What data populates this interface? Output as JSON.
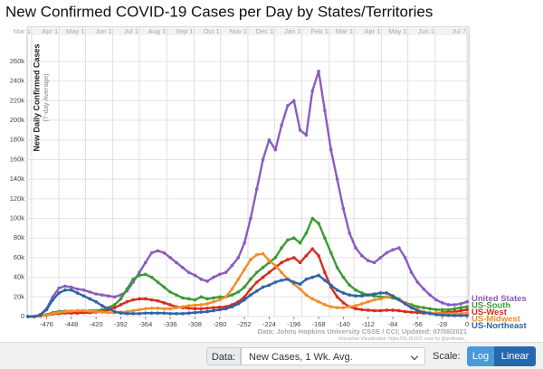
{
  "chart_data": {
    "type": "line",
    "title": "New Confirmed COVID-19 Cases per Day by States/Territories",
    "y_label": "New Daily Confirmed Cases",
    "y_sublabel": "(7-day Average)",
    "source": "Data: Johns Hopkins University CSSE / CCI; Updated: 07/08/2021",
    "credit": "Interactive Visualization: https://91-DIVOC.com/ by @profwade_",
    "x": [
      -497,
      -490,
      -483,
      -476,
      -469,
      -462,
      -455,
      -448,
      -441,
      -434,
      -427,
      -420,
      -413,
      -406,
      -399,
      -392,
      -385,
      -378,
      -371,
      -364,
      -357,
      -350,
      -343,
      -336,
      -329,
      -322,
      -315,
      -308,
      -301,
      -294,
      -287,
      -280,
      -273,
      -266,
      -259,
      -252,
      -245,
      -238,
      -231,
      -224,
      -217,
      -210,
      -203,
      -196,
      -189,
      -182,
      -175,
      -168,
      -161,
      -154,
      -147,
      -140,
      -133,
      -126,
      -119,
      -112,
      -105,
      -98,
      -91,
      -84,
      -77,
      -70,
      -63,
      -56,
      -49,
      -42,
      -35,
      -28,
      -21,
      -14,
      -7,
      0
    ],
    "series": [
      {
        "name": "United States",
        "color": "#8a5cc0",
        "values": [
          0,
          0,
          2000,
          8000,
          20000,
          29000,
          31000,
          30000,
          28000,
          27000,
          25000,
          23000,
          22000,
          21000,
          20000,
          22000,
          26000,
          35000,
          45000,
          55000,
          65000,
          67000,
          65000,
          60000,
          55000,
          50000,
          45000,
          42000,
          38000,
          36000,
          40000,
          43000,
          45000,
          52000,
          60000,
          75000,
          100000,
          130000,
          160000,
          180000,
          170000,
          195000,
          215000,
          220000,
          190000,
          185000,
          230000,
          250000,
          210000,
          170000,
          140000,
          110000,
          85000,
          70000,
          62000,
          57000,
          55000,
          60000,
          65000,
          68000,
          70000,
          60000,
          45000,
          35000,
          28000,
          22000,
          17000,
          14000,
          12000,
          12000,
          13000,
          15000
        ]
      },
      {
        "name": "US-South",
        "color": "#3a9b35",
        "values": [
          0,
          0,
          500,
          2000,
          4000,
          5000,
          5500,
          5500,
          5500,
          5500,
          6000,
          6000,
          7000,
          9000,
          12000,
          18000,
          28000,
          38000,
          42000,
          43000,
          40000,
          35000,
          30000,
          25000,
          22000,
          19000,
          18000,
          17000,
          20000,
          18000,
          19000,
          20000,
          20000,
          22000,
          25000,
          30000,
          38000,
          45000,
          50000,
          55000,
          60000,
          70000,
          78000,
          80000,
          75000,
          85000,
          100000,
          95000,
          80000,
          65000,
          50000,
          40000,
          32000,
          27000,
          24000,
          22000,
          21000,
          20000,
          20000,
          19000,
          17000,
          14000,
          12000,
          10000,
          9000,
          8000,
          7000,
          7000,
          7000,
          8000,
          9000,
          10000
        ]
      },
      {
        "name": "US-West",
        "color": "#d62d20",
        "values": [
          0,
          0,
          500,
          1500,
          2500,
          3000,
          3500,
          3500,
          3500,
          4000,
          4000,
          4500,
          5000,
          7000,
          9000,
          12000,
          15000,
          17000,
          18000,
          18000,
          17000,
          16000,
          14000,
          12000,
          10000,
          9000,
          8500,
          8000,
          8000,
          8500,
          9000,
          9500,
          10000,
          12000,
          15000,
          20000,
          28000,
          35000,
          40000,
          45000,
          50000,
          55000,
          58000,
          60000,
          55000,
          62000,
          69000,
          62000,
          45000,
          30000,
          20000,
          14000,
          10000,
          8000,
          7000,
          6500,
          6000,
          6000,
          6500,
          6500,
          6000,
          5000,
          4500,
          4000,
          3500,
          3500,
          3500,
          4000,
          4500,
          5000,
          6000,
          7000
        ]
      },
      {
        "name": "US-Midwest",
        "color": "#f28e2b",
        "values": [
          0,
          0,
          200,
          1500,
          3000,
          4000,
          5000,
          5500,
          6000,
          6000,
          5500,
          5000,
          4500,
          4000,
          4000,
          4500,
          5000,
          6000,
          7000,
          8000,
          8500,
          8500,
          8000,
          8000,
          9000,
          10000,
          11000,
          11500,
          12000,
          13000,
          15000,
          17000,
          20000,
          28000,
          38000,
          48000,
          58000,
          63000,
          64000,
          57000,
          52000,
          45000,
          38000,
          33000,
          28000,
          22000,
          18000,
          15000,
          12000,
          10000,
          9000,
          9000,
          10000,
          11000,
          13000,
          15000,
          17000,
          18000,
          20000,
          21000,
          18000,
          14000,
          10000,
          7000,
          5000,
          4000,
          3500,
          3000,
          3000,
          3000,
          3000,
          3500
        ]
      },
      {
        "name": "US-Northeast",
        "color": "#2f63a6",
        "values": [
          0,
          0,
          1500,
          7000,
          17000,
          24000,
          27000,
          27000,
          24000,
          21000,
          18000,
          15000,
          11000,
          8000,
          5000,
          3500,
          3000,
          3000,
          3000,
          3500,
          3500,
          3500,
          3500,
          3000,
          3000,
          3000,
          3500,
          4000,
          4500,
          5000,
          6000,
          7000,
          8000,
          10000,
          13000,
          17000,
          22000,
          26000,
          30000,
          32000,
          35000,
          37000,
          38000,
          35000,
          33000,
          38000,
          40000,
          42000,
          37000,
          32000,
          27000,
          24000,
          22000,
          21000,
          21000,
          22000,
          23000,
          24000,
          24000,
          21000,
          17000,
          13000,
          9000,
          6000,
          4000,
          3000,
          2000,
          1500,
          1200,
          1000,
          1000,
          1000
        ]
      }
    ],
    "xlim": [
      -498,
      2
    ],
    "xticks": [
      -476,
      -448,
      -420,
      -392,
      -364,
      -336,
      -308,
      -280,
      -252,
      -224,
      -196,
      -168,
      -140,
      -112,
      -84,
      -56,
      -28,
      0
    ],
    "top_ticks": [
      {
        "value": -493,
        "label": "Mar 1"
      },
      {
        "value": -462,
        "label": "Apr 1"
      },
      {
        "value": -432,
        "label": "May 1"
      },
      {
        "value": -401,
        "label": "Jun 1"
      },
      {
        "value": -371,
        "label": "Jul 1"
      },
      {
        "value": -340,
        "label": "Aug 1"
      },
      {
        "value": -309,
        "label": "Sep 1"
      },
      {
        "value": -279,
        "label": "Oct 1"
      },
      {
        "value": -248,
        "label": "Nov 1"
      },
      {
        "value": -218,
        "label": "Dec 1"
      },
      {
        "value": -187,
        "label": "Jan 1"
      },
      {
        "value": -156,
        "label": "Feb 1"
      },
      {
        "value": -128,
        "label": "Mar 1"
      },
      {
        "value": -97,
        "label": "Apr 1"
      },
      {
        "value": -67,
        "label": "May 1"
      },
      {
        "value": -36,
        "label": "Jun 1"
      },
      {
        "value": 0,
        "label": "Jul 7"
      }
    ],
    "ylim": [
      0,
      295000
    ],
    "yticks": [
      0,
      {
        "value": 20000,
        "label": "20k"
      },
      {
        "value": 40000,
        "label": "40k"
      },
      {
        "value": 60000,
        "label": "60k"
      },
      {
        "value": 80000,
        "label": "80k"
      },
      {
        "value": 100000,
        "label": "100k"
      },
      {
        "value": 120000,
        "label": "120k"
      },
      {
        "value": 140000,
        "label": "140k"
      },
      {
        "value": 160000,
        "label": "160k"
      },
      {
        "value": 180000,
        "label": "180k"
      },
      {
        "value": 200000,
        "label": "200k"
      },
      {
        "value": 220000,
        "label": "220k"
      },
      {
        "value": 240000,
        "label": "240k"
      },
      {
        "value": 260000,
        "label": "260k"
      }
    ],
    "grid": true,
    "log_scale": false
  },
  "controls": {
    "data_label": "Data:",
    "data_select": "New Cases, 1 Wk. Avg.",
    "scale_label": "Scale:",
    "scale_options": [
      "Log",
      "Linear"
    ]
  }
}
